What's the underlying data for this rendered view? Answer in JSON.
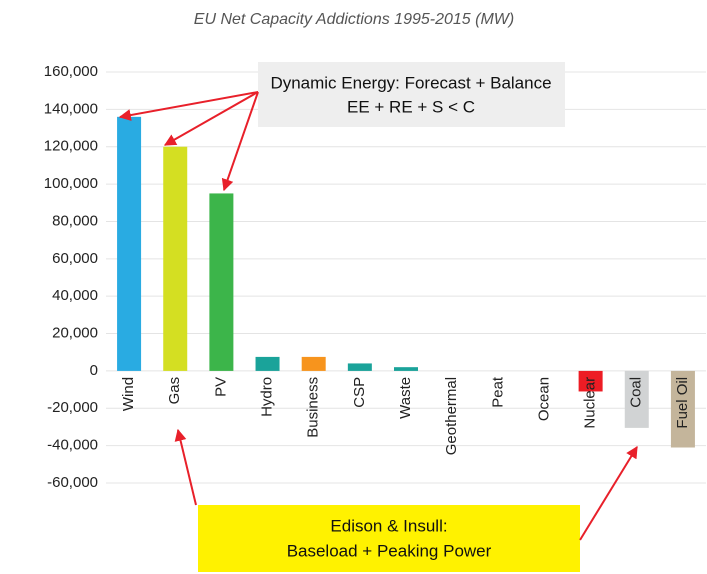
{
  "chart_data": {
    "type": "bar",
    "title": "EU Net Capacity Addictions 1995-2015 (MW)",
    "categories": [
      "Wind",
      "Gas",
      "PV",
      "Hydro",
      "Business",
      "CSP",
      "Waste",
      "Geothermal",
      "Peat",
      "Ocean",
      "Nuclear",
      "Coal",
      "Fuel Oil"
    ],
    "values": [
      136000,
      120000,
      95000,
      7500,
      7500,
      4000,
      2000,
      0,
      0,
      0,
      -11000,
      -30500,
      -41000
    ],
    "colors": [
      "#29abe2",
      "#d4df22",
      "#3cb54a",
      "#1aa39a",
      "#f7941d",
      "#1aa39a",
      "#1aa39a",
      "#1aa39a",
      "#1aa39a",
      "#1aa39a",
      "#ed1c24",
      "#d1d3d4",
      "#c4b59b"
    ],
    "ylim": [
      -60000,
      160000
    ],
    "yticks": [
      {
        "value": -60000,
        "label": "-60,000"
      },
      {
        "value": -40000,
        "label": "-40,000"
      },
      {
        "value": -20000,
        "label": "-20,000"
      },
      0,
      {
        "value": 20000,
        "label": "20,000"
      },
      {
        "value": 40000,
        "label": "40,000"
      },
      {
        "value": 60000,
        "label": "60,000"
      },
      {
        "value": 80000,
        "label": "80,000"
      },
      {
        "value": 100000,
        "label": "100,000"
      },
      {
        "value": 120000,
        "label": "120,000"
      },
      {
        "value": 140000,
        "label": "140,000"
      },
      {
        "value": 160000,
        "label": "160,000"
      }
    ],
    "grid": true,
    "annotations": [
      {
        "lines": [
          "Dynamic Energy: Forecast + Balance",
          "EE + RE + S < C"
        ]
      },
      {
        "lines": [
          "Edison & Insull:",
          "Baseload + Peaking Power"
        ]
      }
    ]
  }
}
